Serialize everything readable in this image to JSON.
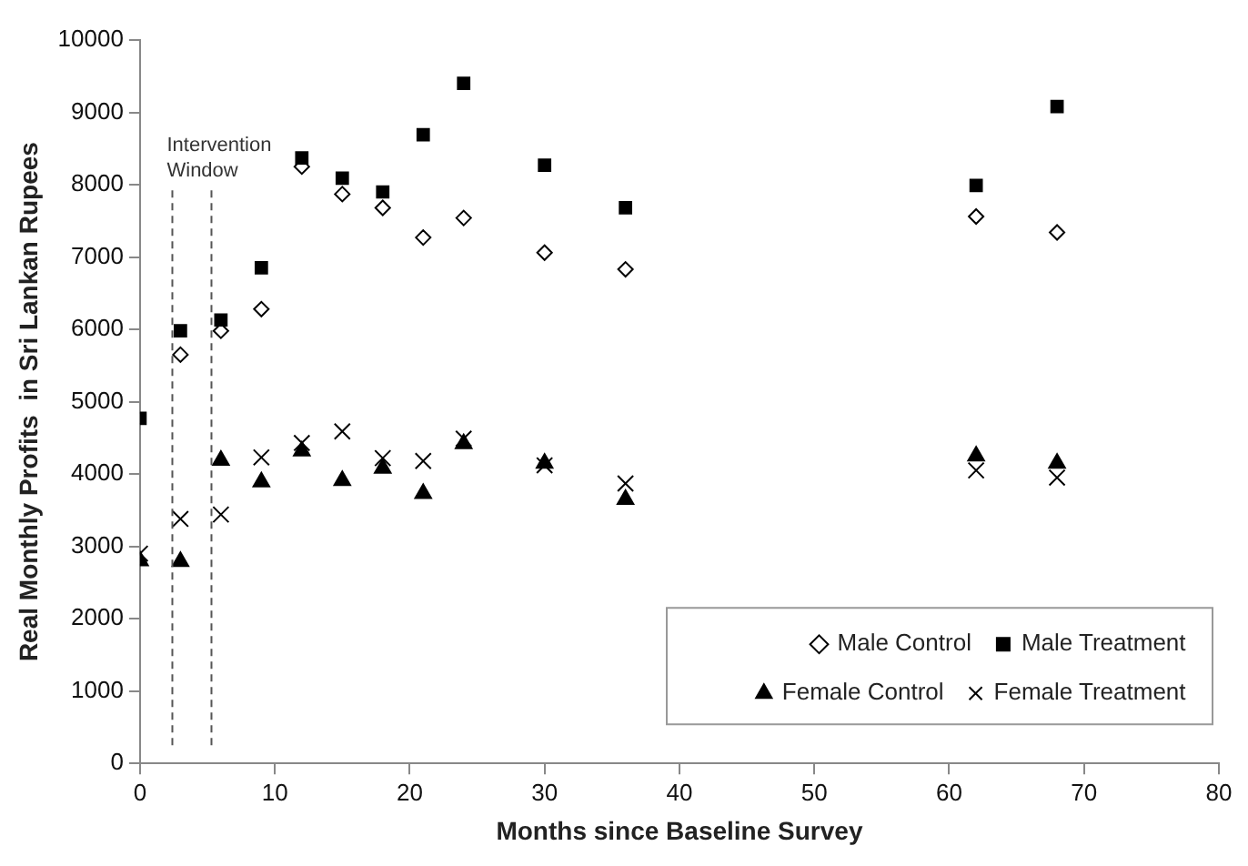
{
  "chart_data": {
    "type": "scatter",
    "xlabel": "Months since Baseline Survey",
    "ylabel": "Real Monthly Profits  in Sri Lankan Rupees",
    "xlim": [
      0,
      80
    ],
    "xticks": [
      0,
      10,
      20,
      30,
      40,
      50,
      60,
      70,
      80
    ],
    "ylim": [
      0,
      10000
    ],
    "yticks": [
      0,
      1000,
      2000,
      3000,
      4000,
      5000,
      6000,
      7000,
      8000,
      9000,
      10000
    ],
    "grid": false,
    "legend": "bottom right",
    "series": [
      {
        "name": "Male Control",
        "color": "#000000",
        "marker": "diamond",
        "x": [
          3,
          6,
          9,
          12,
          15,
          18,
          21,
          24,
          30,
          36,
          62,
          68
        ],
        "values": [
          5650,
          5980,
          6280,
          8250,
          7870,
          7680,
          7270,
          7540,
          7060,
          6830,
          7560,
          7340
        ]
      },
      {
        "name": "Male Treatment",
        "color": "#000000",
        "marker": "square",
        "x": [
          0,
          3,
          6,
          9,
          12,
          15,
          18,
          21,
          24,
          30,
          36,
          62,
          68
        ],
        "values": [
          4770,
          5980,
          6130,
          6850,
          8370,
          8090,
          7900,
          8690,
          9400,
          8270,
          7680,
          7990,
          9080
        ]
      },
      {
        "name": "Female Control",
        "color": "#000000",
        "marker": "triangle",
        "x": [
          0,
          3,
          6,
          9,
          12,
          15,
          18,
          21,
          24,
          30,
          36,
          62,
          68
        ],
        "values": [
          2800,
          2790,
          4190,
          3890,
          4320,
          3910,
          4080,
          3730,
          4420,
          4150,
          3650,
          4250,
          4150
        ]
      },
      {
        "name": "Female Treatment",
        "color": "#000000",
        "marker": "cross",
        "x": [
          0,
          3,
          6,
          9,
          12,
          15,
          18,
          21,
          24,
          30,
          36,
          62,
          68
        ],
        "values": [
          2900,
          3380,
          3440,
          4230,
          4430,
          4590,
          4220,
          4180,
          4490,
          4120,
          3870,
          4050,
          3950
        ]
      }
    ],
    "ref_lines": [
      {
        "axis": "x",
        "value": 2.4,
        "label": "Intervention\nWindow",
        "line_style": "dashed",
        "color": "#555555"
      },
      {
        "axis": "x",
        "value": 5.3,
        "line_style": "dashed",
        "color": "#555555"
      }
    ]
  }
}
